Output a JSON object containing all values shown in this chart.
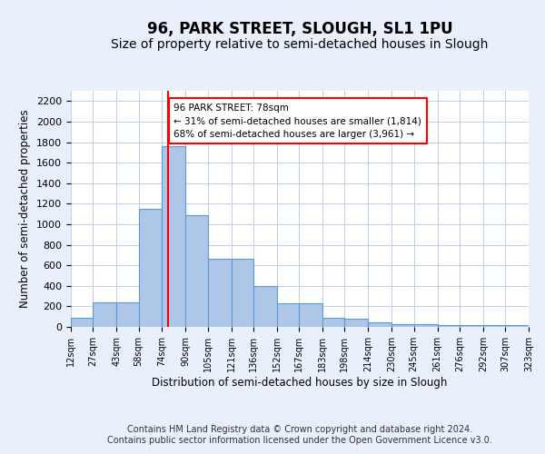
{
  "title": "96, PARK STREET, SLOUGH, SL1 1PU",
  "subtitle": "Size of property relative to semi-detached houses in Slough",
  "xlabel": "Distribution of semi-detached houses by size in Slough",
  "ylabel": "Number of semi-detached properties",
  "bar_edges": [
    12,
    27,
    43,
    58,
    74,
    90,
    105,
    121,
    136,
    152,
    167,
    183,
    198,
    214,
    230,
    245,
    261,
    276,
    292,
    307,
    323
  ],
  "bar_heights": [
    90,
    235,
    240,
    1150,
    1760,
    1085,
    665,
    665,
    400,
    230,
    230,
    85,
    80,
    40,
    30,
    25,
    20,
    20,
    20,
    20
  ],
  "bar_color": "#aec6e8",
  "bar_edge_color": "#5b9bd5",
  "property_line_x": 78,
  "annotation_text": "96 PARK STREET: 78sqm\n← 31% of semi-detached houses are smaller (1,814)\n68% of semi-detached houses are larger (3,961) →",
  "annotation_box_color": "#ffffff",
  "annotation_box_edge": "#ff0000",
  "red_line_color": "#ff0000",
  "ylim": [
    0,
    2300
  ],
  "yticks": [
    0,
    200,
    400,
    600,
    800,
    1000,
    1200,
    1400,
    1600,
    1800,
    2000,
    2200
  ],
  "tick_labels": [
    "12sqm",
    "27sqm",
    "43sqm",
    "58sqm",
    "74sqm",
    "90sqm",
    "105sqm",
    "121sqm",
    "136sqm",
    "152sqm",
    "167sqm",
    "183sqm",
    "198sqm",
    "214sqm",
    "230sqm",
    "245sqm",
    "261sqm",
    "276sqm",
    "292sqm",
    "307sqm",
    "323sqm"
  ],
  "footer": "Contains HM Land Registry data © Crown copyright and database right 2024.\nContains public sector information licensed under the Open Government Licence v3.0.",
  "bg_color": "#eaf0fb",
  "plot_bg_color": "#ffffff",
  "title_fontsize": 12,
  "subtitle_fontsize": 10,
  "axis_label_fontsize": 8.5,
  "footer_fontsize": 7,
  "tick_fontsize": 7,
  "ytick_fontsize": 8
}
